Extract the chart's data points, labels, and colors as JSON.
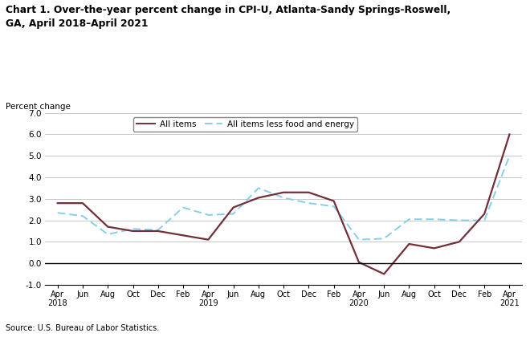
{
  "title_line1": "Chart 1. Over-the-year percent change in CPI-U, Atlanta-Sandy Springs-Roswell,",
  "title_line2": "GA, April 2018–April 2021",
  "ylabel": "Percent change",
  "source": "Source: U.S. Bureau of Labor Statistics.",
  "ylim": [
    -1.0,
    7.0
  ],
  "yticks": [
    -1.0,
    0.0,
    1.0,
    2.0,
    3.0,
    4.0,
    5.0,
    6.0,
    7.0
  ],
  "all_items_label": "All items",
  "core_label": "All items less food and energy",
  "all_items_color": "#722F37",
  "core_color": "#87CEEB",
  "all_items_linewidth": 1.6,
  "core_linewidth": 1.4,
  "all_items_values": [
    2.8,
    2.8,
    1.7,
    1.5,
    1.5,
    1.3,
    1.1,
    2.6,
    3.05,
    3.3,
    3.3,
    2.9,
    0.05,
    -0.5,
    0.9,
    0.7,
    1.0,
    2.3,
    6.0
  ],
  "core_values": [
    2.35,
    2.2,
    1.35,
    1.6,
    1.55,
    2.6,
    2.25,
    2.3,
    3.5,
    3.05,
    2.8,
    2.65,
    1.1,
    1.15,
    2.05,
    2.05,
    2.0,
    2.0,
    5.0
  ],
  "tick_labels": [
    "Apr\n2018",
    "Jun",
    "Aug",
    "Oct",
    "Dec",
    "Feb",
    "Apr\n2019",
    "Jun",
    "Aug",
    "Oct",
    "Dec",
    "Feb",
    "Apr\n2020",
    "Jun",
    "Aug",
    "Oct",
    "Dec",
    "Feb",
    "Apr\n2021"
  ],
  "background_color": "#ffffff",
  "grid_color": "#c8c8c8",
  "n_points": 19
}
